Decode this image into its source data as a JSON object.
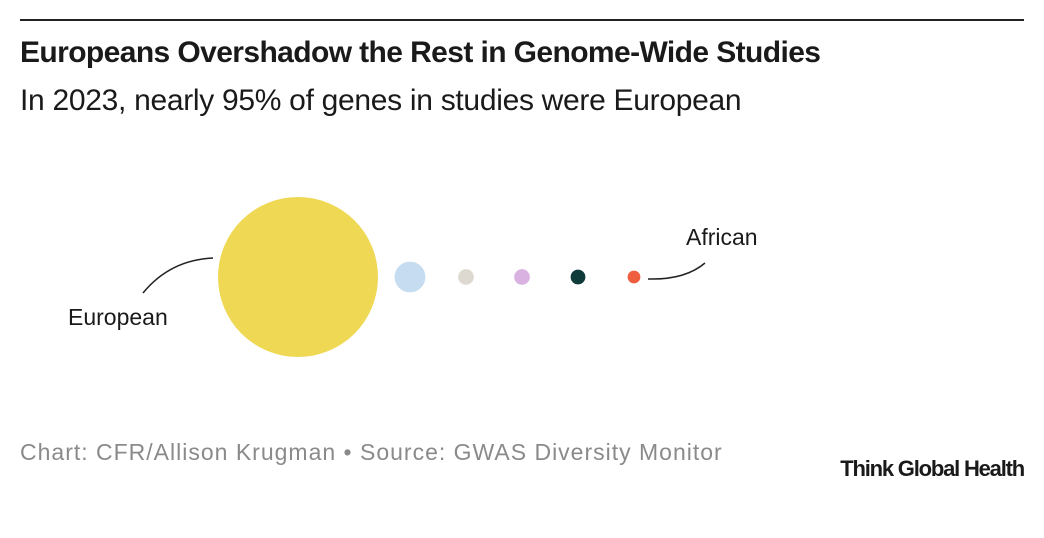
{
  "chart_data": {
    "type": "bubble",
    "title": "Europeans Overshadow the Rest in Genome-Wide Studies",
    "subtitle": "In 2023, nearly 95% of genes in studies were European",
    "categories": [
      "European",
      null,
      null,
      null,
      null,
      "African"
    ],
    "values": [
      94,
      3.5,
      0.9,
      0.9,
      0.8,
      0.6
    ],
    "colors": [
      "#efd853",
      "#c6dcf0",
      "#ddd8d0",
      "#d9b2e2",
      "#0f3b3a",
      "#ef5f3f"
    ],
    "source": "Chart: CFR/Allison Krugman • Source: GWAS Diversity Monitor"
  },
  "branding": "Think Global Health"
}
